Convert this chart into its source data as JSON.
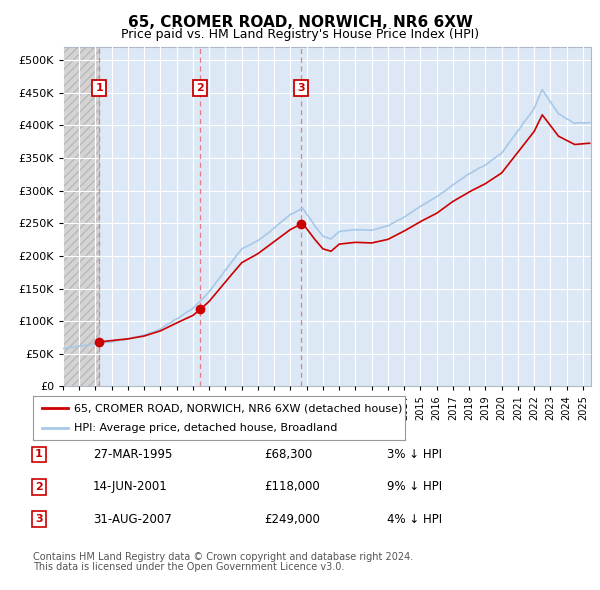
{
  "title": "65, CROMER ROAD, NORWICH, NR6 6XW",
  "subtitle": "Price paid vs. HM Land Registry's House Price Index (HPI)",
  "transactions": [
    {
      "num": 1,
      "date_str": "27-MAR-1995",
      "date_year": 1995.23,
      "price": 68300,
      "pct": "3%",
      "dir": "↓"
    },
    {
      "num": 2,
      "date_str": "14-JUN-2001",
      "date_year": 2001.45,
      "price": 118000,
      "pct": "9%",
      "dir": "↓"
    },
    {
      "num": 3,
      "date_str": "31-AUG-2007",
      "date_year": 2007.67,
      "price": 249000,
      "pct": "4%",
      "dir": "↓"
    }
  ],
  "legend_line1": "65, CROMER ROAD, NORWICH, NR6 6XW (detached house)",
  "legend_line2": "HPI: Average price, detached house, Broadland",
  "footer1": "Contains HM Land Registry data © Crown copyright and database right 2024.",
  "footer2": "This data is licensed under the Open Government Licence v3.0.",
  "hpi_color": "#a8c8e8",
  "price_color": "#cc0000",
  "marker_color": "#cc0000",
  "dashed_line_color": "#e08080",
  "chart_bg_color": "#dce8f5",
  "hatch_color": "#c8c8c8",
  "grid_color": "#ffffff",
  "ylim_max": 520000,
  "ylim_min": 0,
  "xmin": 1993.0,
  "xmax": 2025.5,
  "yticks": [
    0,
    50000,
    100000,
    150000,
    200000,
    250000,
    300000,
    350000,
    400000,
    450000,
    500000
  ]
}
